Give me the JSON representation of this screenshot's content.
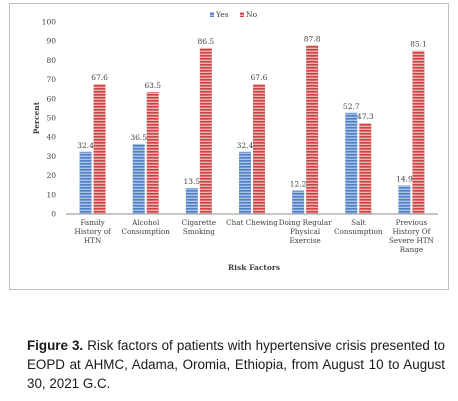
{
  "chart_data": {
    "type": "bar",
    "categories": [
      [
        "Family",
        "History of",
        "HTN"
      ],
      [
        "Alcohol",
        "Consumption"
      ],
      [
        "Cigarette",
        "Smoking"
      ],
      [
        "Chat Chewing"
      ],
      [
        "Doing Regular",
        "Physical",
        "Exercise"
      ],
      [
        "Salt",
        "Consumption"
      ],
      [
        "Previous",
        "History Of",
        "Severe HTN",
        "Range"
      ]
    ],
    "series": [
      {
        "name": "Yes",
        "values": [
          32.4,
          36.5,
          13.5,
          32.4,
          12.2,
          52.7,
          14.9
        ],
        "labels": [
          "32.4",
          "36.5",
          "13.5",
          "32.4",
          "12.2",
          "52.7",
          "14.9"
        ],
        "color": "#5b86c5"
      },
      {
        "name": "No",
        "values": [
          67.6,
          63.5,
          86.5,
          67.6,
          87.8,
          47.3,
          85.1
        ],
        "labels": [
          "67.6",
          "63.5",
          "86.5",
          "67.6",
          "87.8",
          "47.3",
          "85.1"
        ],
        "color": "#d24b4b"
      }
    ],
    "yticks": [
      "0",
      "10",
      "20",
      "30",
      "40",
      "50",
      "60",
      "70",
      "80",
      "90",
      "100"
    ],
    "ylim": [
      0,
      100
    ],
    "xlabel": "Risk Factors",
    "ylabel": "Percent",
    "legend": "top-center",
    "grid": false
  },
  "caption": {
    "label": "Figure 3.",
    "text": "Risk factors of patients with hypertensive crisis presented to EOPD at AHMC, Adama, Oromia, Ethiopia, from August 10 to August 30, 2021 G.C."
  }
}
